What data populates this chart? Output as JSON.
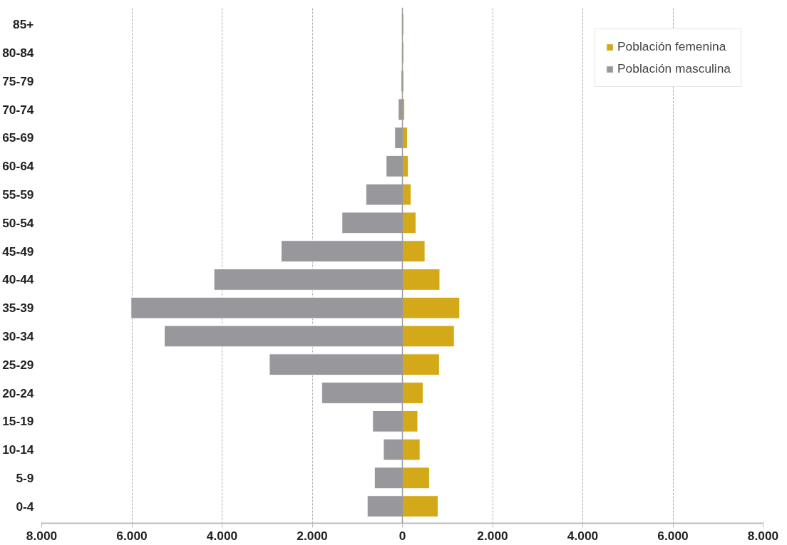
{
  "chart_data": {
    "type": "bar",
    "orientation": "horizontal",
    "categories": [
      "85+",
      "80-84",
      "75-79",
      "70-74",
      "65-69",
      "60-64",
      "55-59",
      "50-54",
      "45-49",
      "40-44",
      "35-39",
      "30-34",
      "25-29",
      "20-24",
      "15-19",
      "10-14",
      "5-9",
      "0-4"
    ],
    "series": [
      {
        "name": "Población femenina",
        "color": "#d4a919",
        "values": [
          30,
          30,
          30,
          50,
          110,
          130,
          190,
          300,
          500,
          830,
          1270,
          1150,
          820,
          460,
          340,
          390,
          600,
          790
        ]
      },
      {
        "name": "Población masculina",
        "color": "#98979c",
        "values": [
          -10,
          -10,
          -30,
          -90,
          -170,
          -360,
          -810,
          -1340,
          -2690,
          -4180,
          -6020,
          -5280,
          -2950,
          -1790,
          -660,
          -420,
          -620,
          -780
        ]
      }
    ],
    "xlim": [
      -8000,
      8000
    ],
    "xticks": [
      {
        "value": -8000,
        "label": "8.000"
      },
      {
        "value": -6000,
        "label": "6.000"
      },
      {
        "value": -4000,
        "label": "4.000"
      },
      {
        "value": -2000,
        "label": "2.000"
      },
      0,
      {
        "value": 2000,
        "label": "2.000"
      },
      {
        "value": 4000,
        "label": "4.000"
      },
      {
        "value": 6000,
        "label": "6.000"
      },
      {
        "value": 8000,
        "label": "8.000"
      }
    ],
    "stacked": true,
    "grid": "x",
    "legend": "top right"
  }
}
